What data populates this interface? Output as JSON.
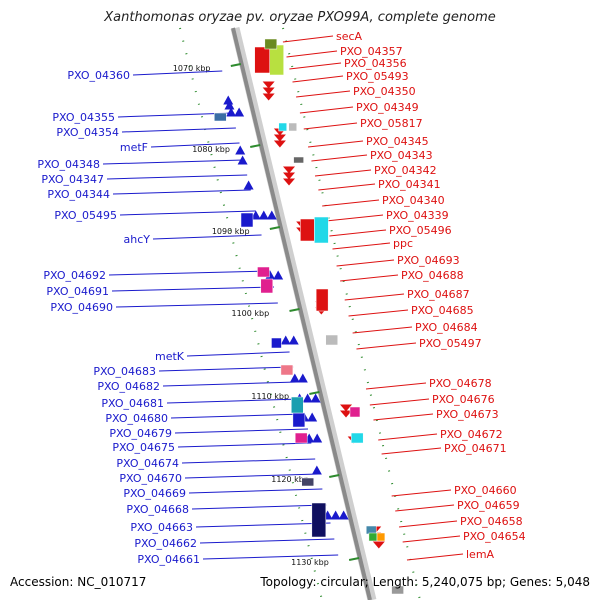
{
  "title": "Xanthomonas oryzae pv. oryzae PXO99A, complete genome",
  "footer": {
    "accession": "Accession: NC_010717",
    "summary": "Topology: circular; Length: 5,240,075 bp; Genes: 5,048"
  },
  "colors": {
    "left_label": "#1a1acc",
    "right_label": "#dd1111",
    "backbone": "#8a8a8a",
    "tick": "#2e8b2e"
  },
  "kbp_labels": [
    "1070 kbp",
    "1080 kbp",
    "1090 kbp",
    "1100 kbp",
    "1110 kbp",
    "1120 kbp",
    "1130 kbp"
  ],
  "left_labels": [
    "PXO_04360",
    "PXO_04355",
    "PXO_04354",
    "metF",
    "PXO_04348",
    "PXO_04347",
    "PXO_04344",
    "PXO_05495",
    "ahcY",
    "PXO_04692",
    "PXO_04691",
    "PXO_04690",
    "metK",
    "PXO_04683",
    "PXO_04682",
    "PXO_04681",
    "PXO_04680",
    "PXO_04679",
    "PXO_04675",
    "PXO_04674",
    "PXO_04670",
    "PXO_04669",
    "PXO_04668",
    "PXO_04663",
    "PXO_04662",
    "PXO_04661"
  ],
  "right_labels": [
    "secA",
    "PXO_04357",
    "PXO_04356",
    "PXO_05493",
    "PXO_04350",
    "PXO_04349",
    "PXO_05817",
    "PXO_04345",
    "PXO_04343",
    "PXO_04342",
    "PXO_04341",
    "PXO_04340",
    "PXO_04339",
    "PXO_05496",
    "ppc",
    "PXO_04693",
    "PXO_04688",
    "PXO_04687",
    "PXO_04685",
    "PXO_04684",
    "PXO_05497",
    "PXO_04678",
    "PXO_04676",
    "PXO_04673",
    "PXO_04672",
    "PXO_04671",
    "PXO_04660",
    "PXO_04659",
    "PXO_04658",
    "PXO_04654",
    "lemA"
  ]
}
